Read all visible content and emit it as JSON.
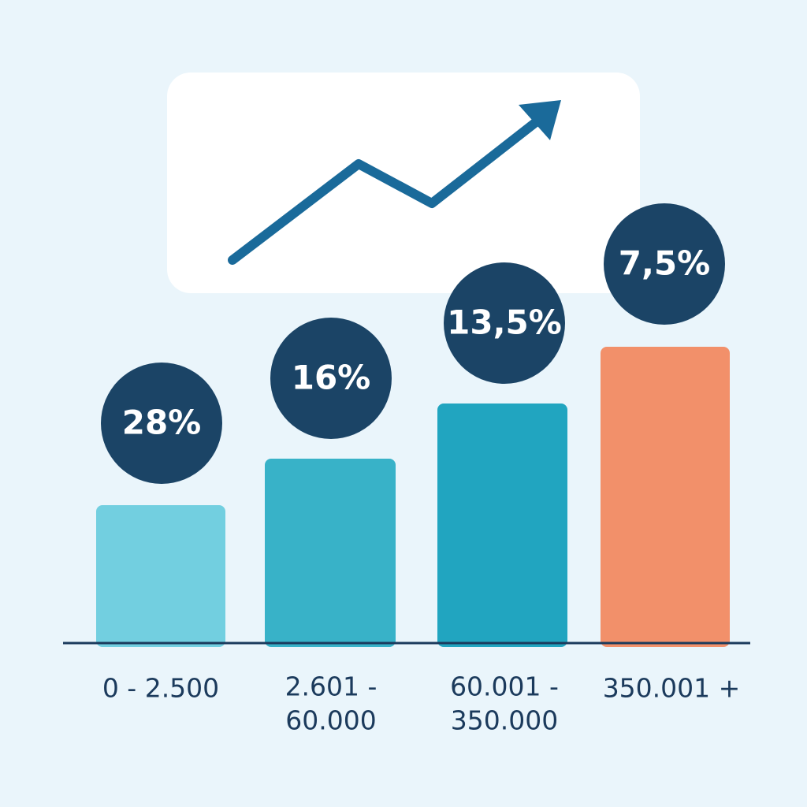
{
  "tiers": [
    {
      "rate": "28%",
      "range": [
        "0 - 2.500"
      ]
    },
    {
      "rate": "16%",
      "range": [
        "2.601 -",
        "60.000"
      ]
    },
    {
      "rate": "13,5%",
      "range": [
        "60.001 -",
        "350.000"
      ]
    },
    {
      "rate": "7,5%",
      "range": [
        "350.001 +"
      ]
    }
  ]
}
